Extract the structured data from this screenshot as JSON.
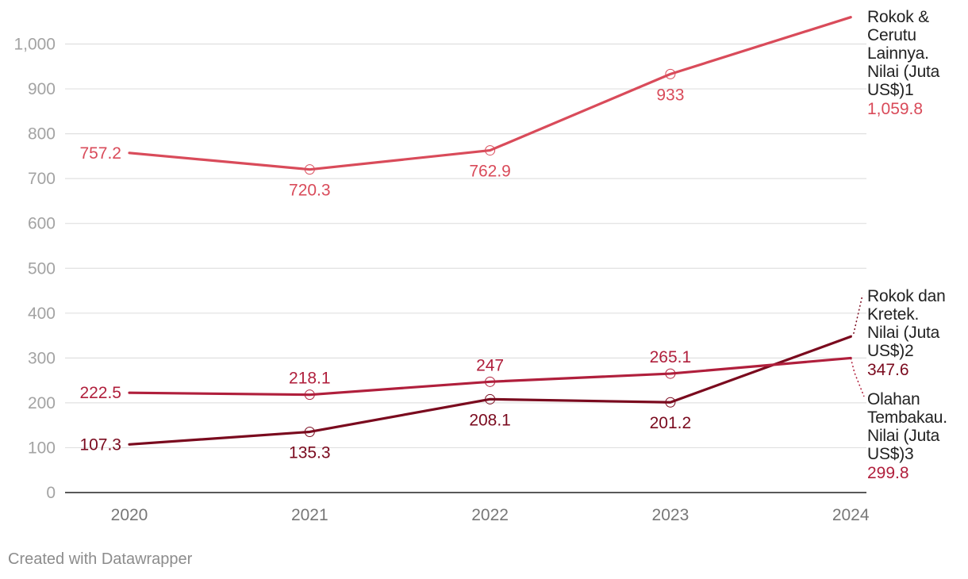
{
  "chart_data": {
    "type": "line",
    "x": [
      "2020",
      "2021",
      "2022",
      "2023",
      "2024"
    ],
    "ylim": [
      0,
      1060
    ],
    "yticks": [
      "0",
      "100",
      "200",
      "300",
      "400",
      "500",
      "600",
      "700",
      "800",
      "900",
      "1,000"
    ],
    "grid": true,
    "series": [
      {
        "name": "Rokok & Cerutu Lainnya. Nilai (Juta US$)1",
        "name_lines": [
          "Rokok &",
          "Cerutu",
          "Lainnya.",
          "Nilai (Juta",
          "US$)1"
        ],
        "color": "#d94b5a",
        "values": [
          757.2,
          720.3,
          762.9,
          933,
          1059.8
        ],
        "labels": [
          "757.2",
          "720.3",
          "762.9",
          "933",
          "1,059.8"
        ]
      },
      {
        "name": "Rokok dan Kretek. Nilai (Juta US$)2",
        "name_lines": [
          "Rokok dan",
          "Kretek.",
          "Nilai (Juta",
          "US$)2"
        ],
        "color": "#7a0a1e",
        "values": [
          107.3,
          135.3,
          208.1,
          201.2,
          347.6
        ],
        "labels": [
          "107.3",
          "135.3",
          "208.1",
          "201.2",
          "347.6"
        ]
      },
      {
        "name": "Olahan Tembakau. Nilai (Juta US$)3",
        "name_lines": [
          "Olahan",
          "Tembakau.",
          "Nilai (Juta",
          "US$)3"
        ],
        "color": "#b01f3c",
        "values": [
          222.5,
          218.1,
          247,
          265.1,
          299.8
        ],
        "labels": [
          "222.5",
          "218.1",
          "247",
          "265.1",
          "299.8"
        ]
      }
    ]
  },
  "footer": "Created with Datawrapper"
}
